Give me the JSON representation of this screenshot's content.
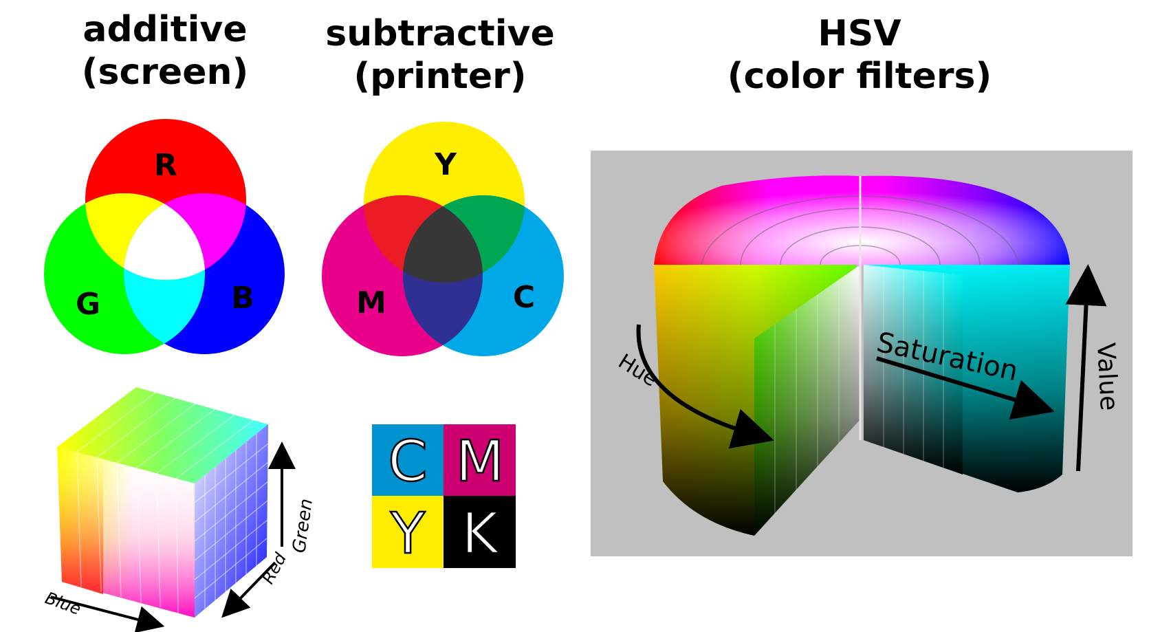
{
  "additive": {
    "title_line1": "additive",
    "title_line2": "(screen)",
    "circles": [
      {
        "label": "R",
        "color": "#ff0000"
      },
      {
        "label": "G",
        "color": "#00ff00"
      },
      {
        "label": "B",
        "color": "#0000ff"
      }
    ],
    "overlap_colors": {
      "rg": "#ffff00",
      "rb": "#ff00ff",
      "gb": "#00ffff",
      "rgb": "#ffffff"
    }
  },
  "subtractive": {
    "title_line1": "subtractive",
    "title_line2": "(printer)",
    "circles": [
      {
        "label": "Y",
        "color": "#ffee00"
      },
      {
        "label": "M",
        "color": "#e9008b"
      },
      {
        "label": "C",
        "color": "#00a8e8"
      }
    ],
    "overlap_colors": {
      "ym": "#ec1c24",
      "yc": "#00a651",
      "mc": "#2e3192",
      "ymc": "#373737"
    }
  },
  "hsv": {
    "title_line1": "HSV",
    "title_line2": "(color filters)",
    "axis_labels": {
      "hue": "Hue",
      "saturation": "Saturation",
      "value": "Value"
    },
    "background": "#c0c0c0"
  },
  "rgb_cube": {
    "axis_labels": {
      "blue": "Blue",
      "red": "Red",
      "green": "Green"
    }
  },
  "cmyk_tiles": [
    {
      "letter": "C",
      "color": "#0093d0"
    },
    {
      "letter": "M",
      "color": "#cc0070"
    },
    {
      "letter": "Y",
      "color": "#ffed00"
    },
    {
      "letter": "K",
      "color": "#000000"
    }
  ]
}
